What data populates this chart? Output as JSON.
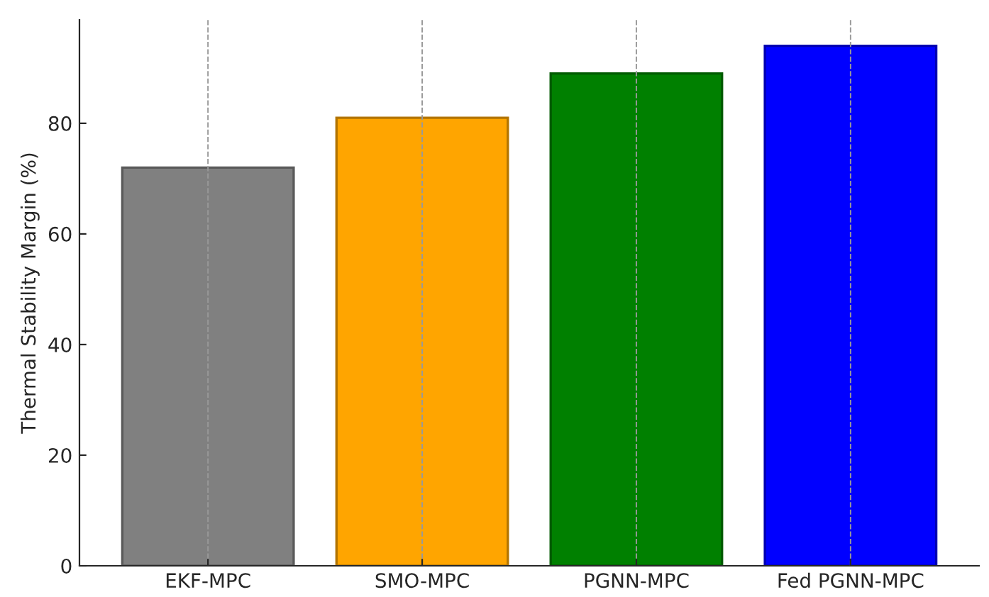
{
  "chart_data": {
    "type": "bar",
    "ylabel": "Thermal Stability Margin (%)",
    "categories": [
      "EKF-MPC",
      "SMO-MPC",
      "PGNN-MPC",
      "Fed PGNN-MPC"
    ],
    "values": [
      72,
      81,
      89,
      94
    ],
    "colors": [
      "#808080",
      "#ffa500",
      "#008000",
      "#0000ff"
    ],
    "ylim": [
      0,
      98.7
    ],
    "yticks": [
      0,
      20,
      40,
      60,
      80
    ],
    "grid": "x",
    "legend": false
  }
}
